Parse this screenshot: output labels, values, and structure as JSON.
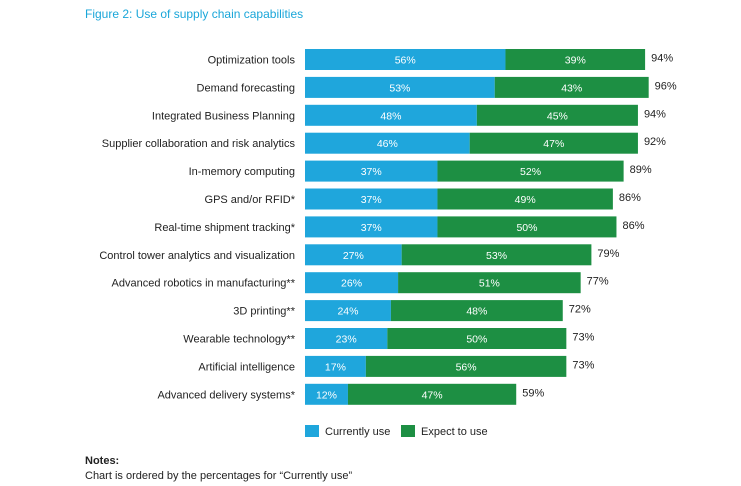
{
  "chart_data": {
    "type": "bar",
    "orientation": "horizontal",
    "stacked": true,
    "title": "Figure 2: Use of supply chain capabilities",
    "categories": [
      "Optimization tools",
      "Demand forecasting",
      "Integrated Business Planning",
      "Supplier collaboration and risk analytics",
      "In-memory computing",
      "GPS and/or RFID*",
      "Real-time shipment tracking*",
      "Control tower analytics and visualization",
      "Advanced robotics in manufacturing**",
      "3D printing**",
      "Wearable technology**",
      "Artificial intelligence",
      "Advanced delivery systems*"
    ],
    "series": [
      {
        "name": "Currently use",
        "color": "#1fa6dc",
        "values": [
          56,
          53,
          48,
          46,
          37,
          37,
          37,
          27,
          26,
          24,
          23,
          17,
          12
        ],
        "labels": [
          "56%",
          "53%",
          "48%",
          "46%",
          "37%",
          "37%",
          "37%",
          "27%",
          "26%",
          "24%",
          "23%",
          "17%",
          "12%"
        ]
      },
      {
        "name": "Expect to use",
        "color": "#1d8f43",
        "values": [
          39,
          43,
          45,
          47,
          52,
          49,
          50,
          53,
          51,
          48,
          50,
          56,
          47
        ],
        "labels": [
          "39%",
          "43%",
          "45%",
          "47%",
          "52%",
          "49%",
          "50%",
          "53%",
          "51%",
          "48%",
          "50%",
          "56%",
          "47%"
        ]
      }
    ],
    "totals": [
      "94%",
      "96%",
      "94%",
      "92%",
      "89%",
      "86%",
      "86%",
      "79%",
      "77%",
      "72%",
      "73%",
      "73%",
      "59%"
    ],
    "xlim": [
      0,
      100
    ],
    "grid": false,
    "legend": "bottom"
  },
  "notes": {
    "heading": "Notes:",
    "text": "Chart is ordered by the percentages for “Currently use”"
  }
}
